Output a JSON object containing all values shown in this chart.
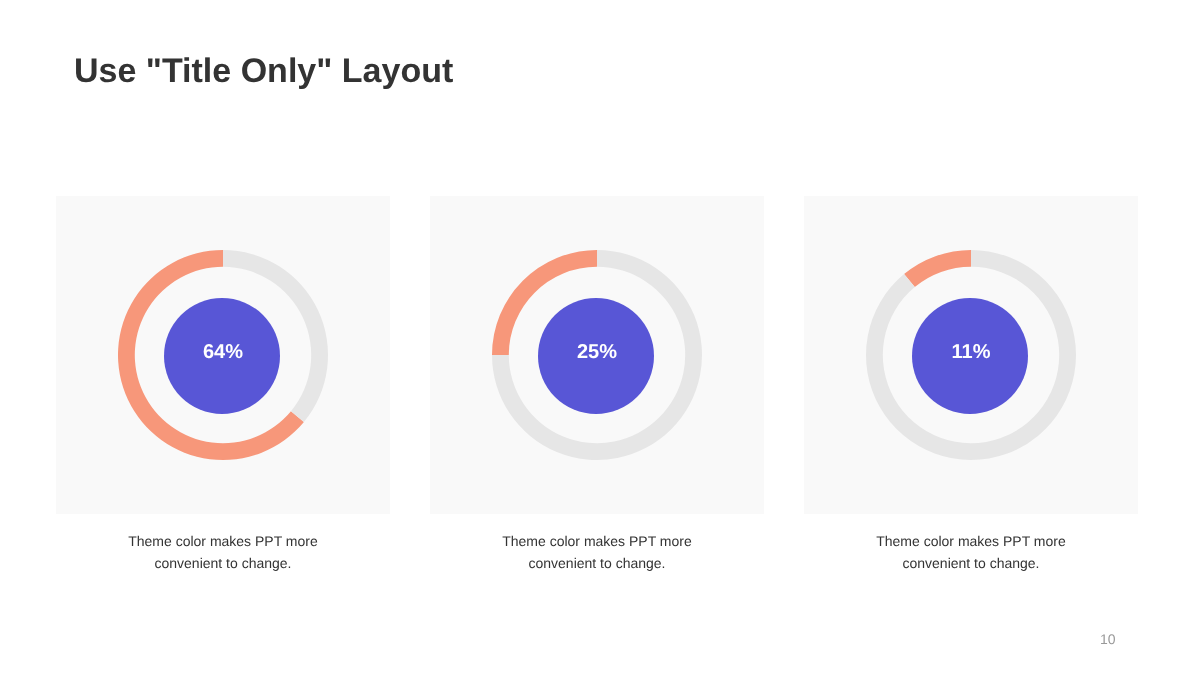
{
  "chart_data": [
    {
      "type": "donut",
      "title": "Use \"Title Only\" Layout",
      "categories": [
        null,
        null
      ],
      "values": [
        64,
        36
      ],
      "colors": [
        "#f7977a",
        "#e6e6e6"
      ],
      "value_labels": [
        "64%",
        null
      ],
      "annotations": [
        "Theme  color makes PPT more convenient to change."
      ]
    },
    {
      "type": "donut",
      "categories": [
        null,
        null
      ],
      "values": [
        25,
        75
      ],
      "colors": [
        "#f7977a",
        "#e6e6e6"
      ],
      "value_labels": [
        "25%",
        null
      ],
      "annotations": [
        "Theme  color makes PPT more convenient to change."
      ]
    },
    {
      "type": "donut",
      "categories": [
        null,
        null
      ],
      "values": [
        11,
        89
      ],
      "colors": [
        "#f7977a",
        "#e6e6e6"
      ],
      "value_labels": [
        "11%",
        null
      ],
      "annotations": [
        "Theme  color makes PPT more convenient to change.",
        "10"
      ]
    }
  ]
}
